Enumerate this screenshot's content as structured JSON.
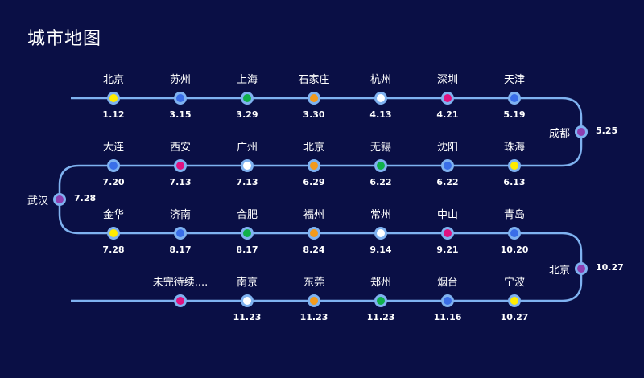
{
  "title": "城市地图",
  "colors": {
    "background": "#0a0f45",
    "line": "#7fb2f0",
    "yellow": "#ffeb00",
    "blue": "#3a6ee8",
    "green": "#10b04a",
    "orange": "#f39a1c",
    "white": "#ffffff",
    "magenta": "#e0137f",
    "purple": "#8e3fb0"
  },
  "stops": [
    {
      "name": "北京",
      "date": "1.12",
      "color": "yellow"
    },
    {
      "name": "苏州",
      "date": "3.15",
      "color": "blue"
    },
    {
      "name": "上海",
      "date": "3.29",
      "color": "green"
    },
    {
      "name": "石家庄",
      "date": "3.30",
      "color": "orange"
    },
    {
      "name": "杭州",
      "date": "4.13",
      "color": "white"
    },
    {
      "name": "深圳",
      "date": "4.21",
      "color": "magenta"
    },
    {
      "name": "天津",
      "date": "5.19",
      "color": "blue"
    },
    {
      "name": "成都",
      "date": "5.25",
      "color": "purple"
    },
    {
      "name": "珠海",
      "date": "6.13",
      "color": "yellow"
    },
    {
      "name": "沈阳",
      "date": "6.22",
      "color": "blue"
    },
    {
      "name": "无锡",
      "date": "6.22",
      "color": "green"
    },
    {
      "name": "北京",
      "date": "6.29",
      "color": "orange"
    },
    {
      "name": "广州",
      "date": "7.13",
      "color": "white"
    },
    {
      "name": "西安",
      "date": "7.13",
      "color": "magenta"
    },
    {
      "name": "大连",
      "date": "7.20",
      "color": "blue"
    },
    {
      "name": "武汉",
      "date": "7.28",
      "color": "purple"
    },
    {
      "name": "金华",
      "date": "7.28",
      "color": "yellow"
    },
    {
      "name": "济南",
      "date": "8.17",
      "color": "blue"
    },
    {
      "name": "合肥",
      "date": "8.17",
      "color": "green"
    },
    {
      "name": "福州",
      "date": "8.24",
      "color": "orange"
    },
    {
      "name": "常州",
      "date": "9.14",
      "color": "white"
    },
    {
      "name": "中山",
      "date": "9.21",
      "color": "magenta"
    },
    {
      "name": "青岛",
      "date": "10.20",
      "color": "blue"
    },
    {
      "name": "北京",
      "date": "10.27",
      "color": "purple"
    },
    {
      "name": "宁波",
      "date": "10.27",
      "color": "yellow"
    },
    {
      "name": "烟台",
      "date": "11.16",
      "color": "blue"
    },
    {
      "name": "郑州",
      "date": "11.23",
      "color": "green"
    },
    {
      "name": "东莞",
      "date": "11.23",
      "color": "orange"
    },
    {
      "name": "南京",
      "date": "11.23",
      "color": "white"
    },
    {
      "name": "未完待续....",
      "date": "",
      "color": "magenta"
    }
  ]
}
